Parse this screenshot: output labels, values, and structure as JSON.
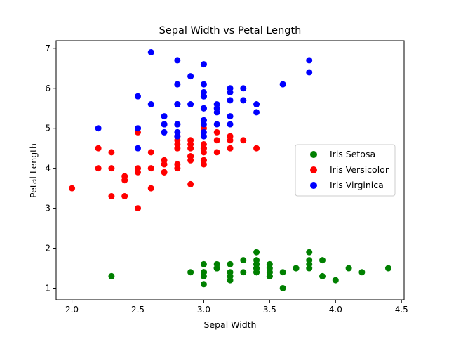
{
  "chart_data": {
    "type": "scatter",
    "title": "Sepal Width vs Petal Length",
    "xlabel": "Sepal Width",
    "ylabel": "Petal Length",
    "xlim": [
      1.88,
      4.52
    ],
    "ylim": [
      0.71,
      7.19
    ],
    "xticks": [
      "2.0",
      "2.5",
      "3.0",
      "3.5",
      "4.0",
      "4.5"
    ],
    "yticks": [
      "1",
      "2",
      "3",
      "4",
      "5",
      "6",
      "7"
    ],
    "grid": false,
    "legend_position": "center-right",
    "series": [
      {
        "name": "Iris Setosa",
        "color": "#008000",
        "x": [
          3.5,
          3.0,
          3.2,
          3.1,
          3.6,
          3.9,
          3.4,
          3.4,
          2.9,
          3.1,
          3.7,
          3.4,
          3.0,
          3.0,
          4.0,
          4.4,
          3.9,
          3.5,
          3.8,
          3.8,
          3.4,
          3.7,
          3.6,
          3.3,
          3.4,
          3.0,
          3.4,
          3.5,
          3.4,
          3.2,
          3.1,
          3.4,
          4.1,
          4.2,
          3.1,
          3.2,
          3.5,
          3.1,
          3.0,
          3.4,
          3.5,
          2.3,
          3.2,
          3.5,
          3.8,
          3.0,
          3.8,
          3.2,
          3.7,
          3.3
        ],
        "y": [
          1.4,
          1.4,
          1.3,
          1.5,
          1.4,
          1.7,
          1.4,
          1.5,
          1.4,
          1.5,
          1.5,
          1.6,
          1.4,
          1.1,
          1.2,
          1.5,
          1.3,
          1.4,
          1.7,
          1.5,
          1.7,
          1.5,
          1.0,
          1.7,
          1.9,
          1.6,
          1.6,
          1.5,
          1.4,
          1.6,
          1.6,
          1.5,
          1.5,
          1.4,
          1.5,
          1.2,
          1.3,
          1.5,
          1.3,
          1.5,
          1.3,
          1.3,
          1.3,
          1.6,
          1.9,
          1.4,
          1.6,
          1.4,
          1.5,
          1.4
        ]
      },
      {
        "name": "Iris Versicolor",
        "color": "#ff0000",
        "x": [
          3.2,
          3.2,
          3.1,
          2.3,
          2.8,
          2.8,
          3.3,
          2.4,
          2.9,
          2.7,
          2.0,
          3.0,
          2.2,
          2.9,
          2.9,
          3.1,
          3.0,
          2.7,
          2.2,
          2.5,
          3.2,
          2.8,
          2.5,
          2.8,
          2.9,
          3.0,
          2.8,
          3.0,
          2.9,
          2.6,
          2.4,
          2.4,
          2.7,
          2.7,
          3.0,
          3.4,
          3.1,
          2.3,
          3.0,
          2.5,
          2.6,
          3.0,
          2.6,
          2.3,
          2.7,
          3.0,
          2.9,
          2.9,
          2.5,
          2.8
        ],
        "y": [
          4.7,
          4.5,
          4.9,
          4.0,
          4.6,
          4.5,
          4.7,
          3.3,
          4.6,
          3.9,
          3.5,
          4.2,
          4.0,
          4.7,
          3.6,
          4.4,
          4.5,
          4.1,
          4.5,
          3.9,
          4.8,
          4.0,
          4.9,
          4.7,
          4.3,
          4.4,
          4.8,
          5.0,
          4.5,
          3.5,
          3.8,
          3.7,
          3.9,
          5.1,
          4.5,
          4.5,
          4.7,
          4.4,
          4.1,
          4.0,
          4.4,
          4.6,
          4.0,
          3.3,
          4.2,
          4.2,
          4.2,
          4.3,
          3.0,
          4.1
        ]
      },
      {
        "name": "Iris Virginica",
        "color": "#0000ff",
        "x": [
          3.3,
          2.7,
          3.0,
          2.9,
          3.0,
          3.0,
          2.5,
          2.9,
          2.5,
          3.6,
          3.2,
          2.7,
          3.0,
          2.5,
          2.8,
          3.2,
          3.0,
          3.8,
          2.6,
          2.2,
          3.2,
          2.8,
          2.8,
          2.7,
          3.3,
          3.2,
          2.8,
          3.0,
          2.8,
          3.0,
          2.8,
          3.8,
          2.8,
          2.8,
          2.6,
          3.0,
          3.4,
          3.1,
          3.0,
          3.1,
          3.1,
          3.1,
          2.7,
          3.2,
          3.3,
          3.0,
          2.5,
          3.0,
          3.4,
          3.0
        ],
        "y": [
          6.0,
          5.1,
          5.9,
          5.6,
          5.8,
          6.6,
          4.5,
          6.3,
          5.8,
          6.1,
          5.1,
          5.3,
          5.5,
          5.0,
          5.1,
          5.3,
          5.5,
          6.7,
          6.9,
          5.0,
          5.7,
          4.9,
          6.7,
          4.9,
          5.7,
          6.0,
          4.8,
          4.9,
          5.6,
          5.8,
          6.1,
          6.4,
          5.6,
          5.1,
          5.6,
          6.1,
          5.6,
          5.5,
          4.8,
          5.4,
          5.6,
          5.1,
          5.1,
          5.9,
          5.7,
          5.2,
          5.0,
          5.2,
          5.4,
          5.1
        ]
      }
    ]
  }
}
